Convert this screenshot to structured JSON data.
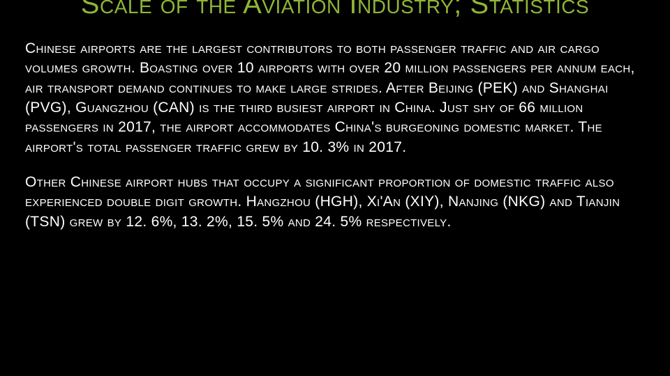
{
  "title": {
    "text": "Scale of the Aviation Industry; Statistics",
    "color": "#8fb536",
    "fontsize": 40
  },
  "paragraphs": [
    {
      "text": "Chinese airports are the largest contributors to both passenger traffic and air cargo volumes growth. Boasting over 10 airports with over 20 million passengers per annum each, air transport demand continues to make large strides. After Beijing (PEK) and Shanghai (PVG), Guangzhou (CAN) is the third busiest airport in China. Just shy of 66 million passengers in 2017, the airport accommodates China's burgeoning domestic market. The airport's total passenger traffic grew by 10. 3% in 2017.",
      "fontsize": 21,
      "color": "#ffffff"
    },
    {
      "text": "Other Chinese airport hubs that occupy a significant proportion of domestic traffic also experienced double digit growth. Hangzhou (HGH), Xi'An (XIY), Nanjing (NKG) and Tianjin (TSN) grew by 12. 6%, 13. 2%, 15. 5% and 24. 5% respectively.",
      "fontsize": 21,
      "color": "#ffffff"
    }
  ],
  "background": "#000000"
}
